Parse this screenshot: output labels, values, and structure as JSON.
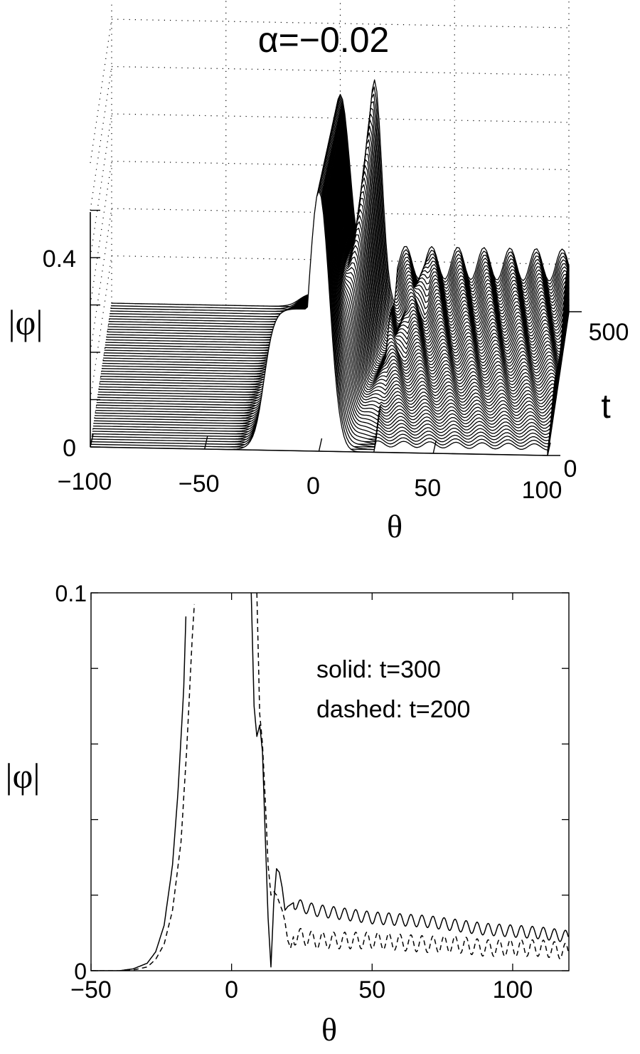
{
  "figure": {
    "title": "α=−0.02"
  },
  "chart_data": [
    {
      "type": "line",
      "subtype": "3d-waterfall",
      "title": "α=−0.02",
      "xlabel": "θ",
      "ylabel": "|φ|",
      "zlabel": "t",
      "xlim": [
        -100,
        100
      ],
      "ylim": [
        0,
        0.5
      ],
      "tlim": [
        0,
        500
      ],
      "x_ticks": [
        {
          "value": -100,
          "label": "−100"
        },
        {
          "value": -50,
          "label": "−50"
        },
        {
          "value": 0,
          "label": "0"
        },
        {
          "value": 50,
          "label": "50"
        },
        {
          "value": 100,
          "label": "100"
        }
      ],
      "y_ticks": [
        {
          "value": 0,
          "label": "0"
        },
        {
          "value": 0.4,
          "label": "0.4"
        }
      ],
      "t_ticks": [
        {
          "value": 0,
          "label": "0"
        },
        {
          "value": 500,
          "label": "500"
        }
      ],
      "grid": true,
      "series_count": 56,
      "initial_peak_value": 0.55,
      "initial_background_value": 0.3
    },
    {
      "type": "line",
      "xlabel": "θ",
      "ylabel": "|φ|",
      "xlim": [
        -50,
        120
      ],
      "ylim": [
        0,
        0.1
      ],
      "x_ticks": [
        {
          "value": -50,
          "label": "−50"
        },
        {
          "value": 0,
          "label": "0"
        },
        {
          "value": 50,
          "label": "50"
        },
        {
          "value": 100,
          "label": "100"
        }
      ],
      "y_ticks": [
        {
          "value": 0,
          "label": "0"
        },
        {
          "value": 0.1,
          "label": "0.1"
        }
      ],
      "grid": false,
      "annotations": [
        "solid: t=300",
        "dashed: t=200"
      ],
      "series": [
        {
          "style": "solid",
          "x": [
            -50,
            -40,
            -35,
            -30,
            -27,
            -24,
            -21,
            -19,
            -17,
            -16,
            7,
            8,
            9,
            10,
            11,
            12,
            13,
            14,
            15,
            16,
            17,
            18,
            19,
            20,
            22,
            25,
            30,
            40,
            50,
            60,
            70,
            80,
            90,
            100,
            110,
            120
          ],
          "values": [
            0,
            0,
            0.0005,
            0.002,
            0.005,
            0.012,
            0.028,
            0.048,
            0.075,
            0.1,
            0.1,
            0.07,
            0.062,
            0.065,
            0.058,
            0.035,
            0.014,
            0.001,
            0.018,
            0.027,
            0.026,
            0.022,
            0.016,
            0.017,
            0.018,
            0.017,
            0.016,
            0.015,
            0.014,
            0.0135,
            0.013,
            0.012,
            0.011,
            0.0105,
            0.01,
            0.009
          ]
        },
        {
          "style": "dashed",
          "x": [
            -50,
            -40,
            -35,
            -30,
            -27,
            -24,
            -21,
            -18,
            -16,
            -14,
            -13,
            9,
            10,
            11,
            12,
            13,
            14,
            15,
            16,
            17,
            18,
            19,
            20,
            21,
            22,
            25,
            30,
            40,
            50,
            60,
            70,
            80,
            90,
            100,
            110,
            120
          ],
          "values": [
            0,
            0,
            0.0002,
            0.001,
            0.003,
            0.007,
            0.016,
            0.034,
            0.058,
            0.088,
            0.1,
            0.1,
            0.068,
            0.06,
            0.045,
            0.028,
            0.02,
            0.021,
            0.02,
            0.018,
            0.016,
            0.013,
            0.008,
            0.006,
            0.009,
            0.009,
            0.008,
            0.008,
            0.008,
            0.0075,
            0.007,
            0.007,
            0.006,
            0.006,
            0.006,
            0.005
          ]
        }
      ]
    }
  ]
}
